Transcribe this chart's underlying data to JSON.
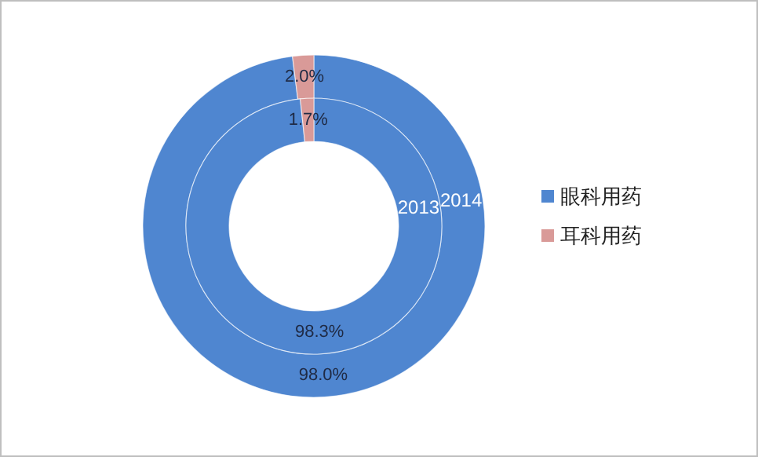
{
  "chart_data": {
    "type": "donut",
    "categories": [
      "眼科用药",
      "耳科用药"
    ],
    "colors": [
      "#4f86d0",
      "#d99a98"
    ],
    "legend": "right",
    "series": [
      {
        "name": "2014",
        "values": [
          98.0,
          2.0
        ],
        "value_labels": [
          "98.0%",
          "2.0%"
        ]
      },
      {
        "name": "2013",
        "values": [
          98.3,
          1.7
        ],
        "value_labels": [
          "98.3%",
          "1.7%"
        ]
      }
    ]
  }
}
